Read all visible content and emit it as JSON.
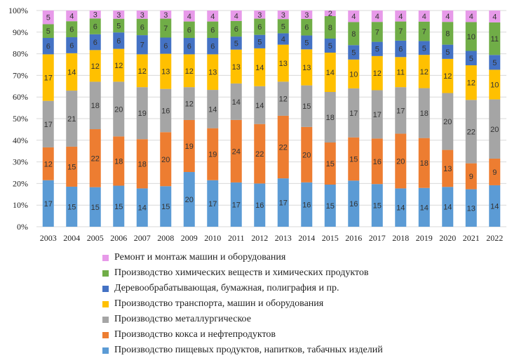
{
  "chart_data": {
    "type": "bar",
    "stacked": true,
    "percent": true,
    "categories": [
      "2003",
      "2004",
      "2005",
      "2006",
      "2007",
      "2008",
      "2009",
      "2010",
      "2011",
      "2012",
      "2013",
      "2014",
      "2015",
      "2016",
      "2017",
      "2018",
      "2019",
      "2020",
      "2021",
      "2022"
    ],
    "ylim": [
      0,
      100
    ],
    "yticks": [
      "0%",
      "10%",
      "20%",
      "30%",
      "40%",
      "50%",
      "60%",
      "70%",
      "80%",
      "90%",
      "100%"
    ],
    "grid": true,
    "legend_position": "bottom",
    "series": [
      {
        "name": "Производство пищевых  продуктов,  напитков, табачных изделий",
        "color": "#5b9bd5",
        "values": [
          17,
          15,
          15,
          15,
          14,
          15,
          20,
          17,
          17,
          16,
          17,
          16,
          15,
          16,
          15,
          14,
          14,
          14,
          13,
          14
        ],
        "labels": [
          "17",
          "15",
          "15",
          "15",
          "14",
          "15",
          "20",
          "17",
          "17",
          "16",
          "17",
          "16",
          "15",
          "16",
          "15",
          "14",
          "14",
          "14",
          "13",
          "14"
        ]
      },
      {
        "name": "Производство кокса и нефтепродуктов",
        "color": "#ed7d31",
        "values": [
          12,
          15,
          22,
          18,
          18,
          20,
          19,
          19,
          24,
          22,
          22,
          20,
          15,
          15,
          16,
          20,
          18,
          13,
          9,
          9
        ],
        "labels": [
          "12",
          "15",
          "22",
          "18",
          "18",
          "20",
          "19",
          "19",
          "24",
          "22",
          "22",
          "20",
          "15",
          "15",
          "16",
          "20",
          "18",
          "13",
          "9",
          "9"
        ]
      },
      {
        "name": "Производство металлургическое",
        "color": "#a5a5a5",
        "values": [
          17,
          21,
          18,
          20,
          19,
          16,
          12,
          14,
          14,
          14,
          12,
          15,
          18,
          17,
          17,
          17,
          18,
          20,
          22,
          20
        ],
        "labels": [
          "17",
          "21",
          "18",
          "20",
          "19",
          "16",
          "12",
          "14",
          "14",
          "14",
          "12",
          "15",
          "18",
          "17",
          "17",
          "17",
          "18",
          "20",
          "22",
          "20"
        ]
      },
      {
        "name": "Производство транспорта, машин и оборудования",
        "color": "#ffc000",
        "values": [
          17,
          14,
          12,
          12,
          12,
          13,
          12,
          13,
          13,
          14,
          13,
          13,
          14,
          10,
          12,
          11,
          12,
          12,
          12,
          10
        ],
        "labels": [
          "17",
          "14",
          "12",
          "12",
          "12",
          "13",
          "12",
          "13",
          "13",
          "14",
          "13",
          "13",
          "14",
          "10",
          "12",
          "11",
          "12",
          "12",
          "12",
          "10"
        ]
      },
      {
        "name": "Деревообрабатывающая, бумажная, полиграфия и пр.",
        "color": "#4472c4",
        "values": [
          6,
          6,
          6,
          6,
          7,
          6,
          6,
          6,
          5,
          5,
          4,
          5,
          5,
          5,
          5,
          6,
          5,
          5,
          5,
          5
        ],
        "labels": [
          "6",
          "6",
          "6",
          "6",
          "7",
          "6",
          "6",
          "6",
          "5",
          "5",
          "4",
          "5",
          "5",
          "5",
          "5",
          "6",
          "5",
          "5",
          "5",
          "5"
        ]
      },
      {
        "name": "Производство химических веществ и химических продуктов",
        "color": "#70ad47",
        "values": [
          5,
          6,
          6,
          5,
          6,
          7,
          6,
          6,
          6,
          6,
          5,
          6,
          8,
          8,
          7,
          7,
          7,
          8,
          10,
          11
        ],
        "labels": [
          "5",
          "6",
          "6",
          "5",
          "6",
          "7",
          "6",
          "6",
          "6",
          "6",
          "5",
          "6",
          "8",
          "8",
          "7",
          "7",
          "7",
          "8",
          "10",
          "11"
        ]
      },
      {
        "name": "Ремонт и монтаж машин и оборудования",
        "color": "#e79ae9",
        "values": [
          5,
          4,
          3,
          3,
          3,
          3,
          4,
          4,
          4,
          3,
          3,
          3,
          2,
          4,
          4,
          4,
          4,
          4,
          4,
          4
        ],
        "labels": [
          "5",
          "4",
          "3",
          "3",
          "3",
          "3",
          "4",
          "4",
          "4",
          "3",
          "3",
          "3",
          "2",
          "4",
          "4",
          "4",
          "4",
          "4",
          "4",
          "4"
        ]
      }
    ],
    "legend_order": [
      6,
      5,
      4,
      3,
      2,
      1,
      0
    ]
  }
}
